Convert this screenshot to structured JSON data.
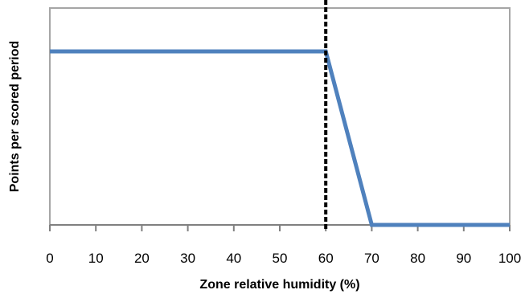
{
  "chart_data": {
    "type": "line",
    "title": "",
    "xlabel": "Zone relative humidity (%)",
    "ylabel": "Points per scored period",
    "xlim": [
      0,
      100
    ],
    "ylim": [
      0,
      1
    ],
    "x_ticks": [
      "0",
      "10",
      "20",
      "30",
      "40",
      "50",
      "60",
      "70",
      "80",
      "90",
      "100"
    ],
    "y_ticks_labeled": false,
    "grid": false,
    "series": [
      {
        "x": [
          0,
          60,
          70,
          100
        ],
        "y": [
          1,
          1,
          0,
          0
        ],
        "color": "#4F81BD"
      }
    ],
    "reference_lines": [
      {
        "x": 60,
        "style": "dashed",
        "color": "#000000"
      }
    ],
    "frame_color": "#A6A6A6"
  }
}
